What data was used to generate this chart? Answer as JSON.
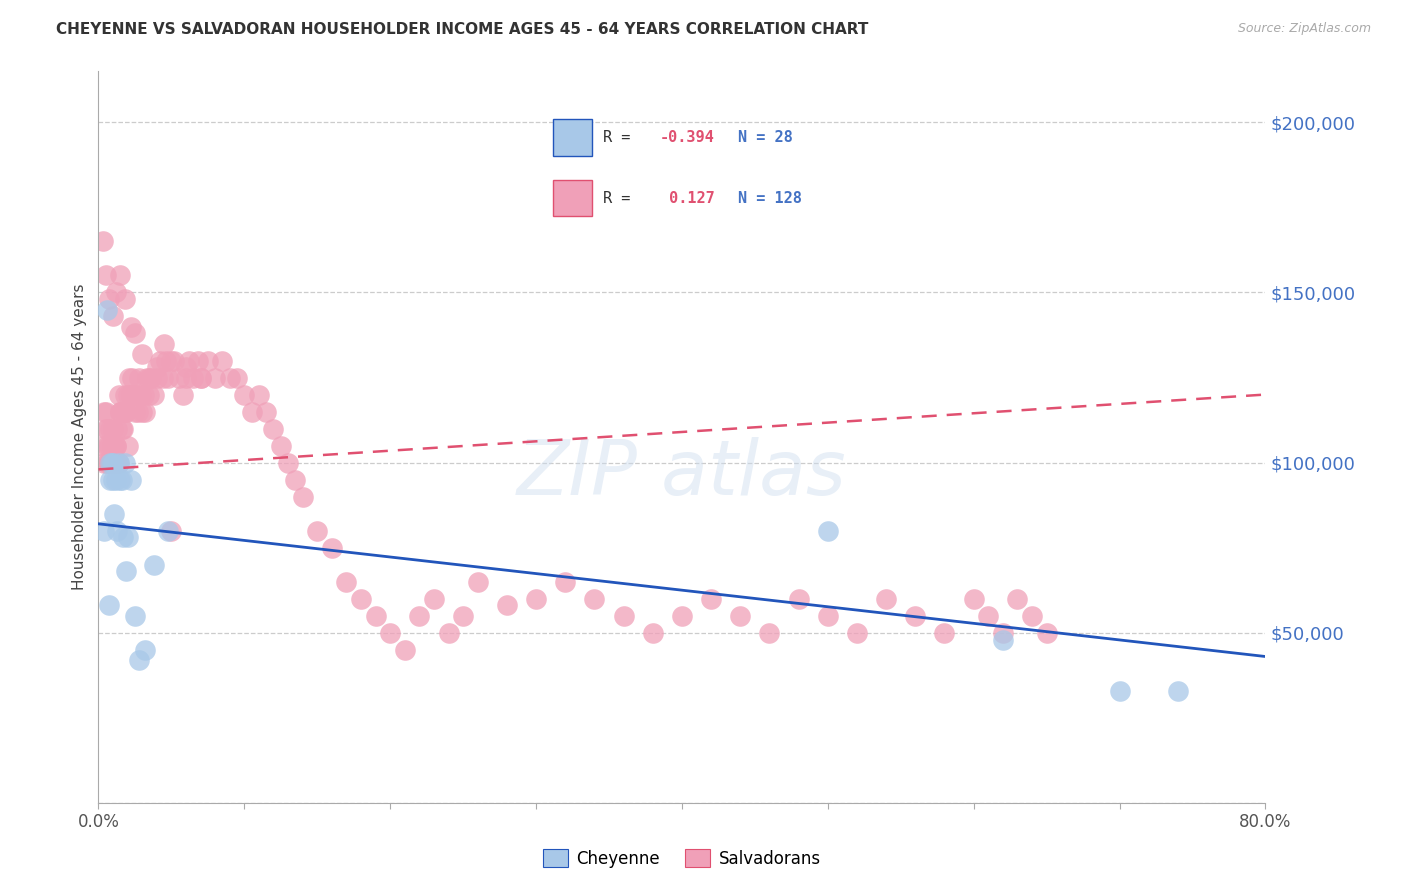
{
  "title": "CHEYENNE VS SALVADORAN HOUSEHOLDER INCOME AGES 45 - 64 YEARS CORRELATION CHART",
  "source": "Source: ZipAtlas.com",
  "ylabel": "Householder Income Ages 45 - 64 years",
  "legend_label_1": "Cheyenne",
  "legend_label_2": "Salvadorans",
  "r1": "-0.394",
  "n1": "28",
  "r2": "0.127",
  "n2": "128",
  "xlim": [
    0.0,
    0.8
  ],
  "ylim": [
    0,
    215000
  ],
  "color_cheyenne": "#a8c8e8",
  "color_salvadoran": "#f0a0b8",
  "color_line_cheyenne": "#2255bb",
  "color_line_salvadoran": "#e05070",
  "color_ytick_labels": "#4472c4",
  "cheyenne_line_y0": 82000,
  "cheyenne_line_y1": 43000,
  "salv_line_y0": 98000,
  "salv_line_y1": 120000,
  "cheyenne_points_x": [
    0.004,
    0.006,
    0.007,
    0.008,
    0.008,
    0.009,
    0.01,
    0.01,
    0.011,
    0.012,
    0.013,
    0.014,
    0.015,
    0.016,
    0.017,
    0.018,
    0.019,
    0.02,
    0.022,
    0.025,
    0.028,
    0.032,
    0.038,
    0.048,
    0.5,
    0.62,
    0.7,
    0.74
  ],
  "cheyenne_points_y": [
    80000,
    145000,
    58000,
    95000,
    100000,
    100000,
    95000,
    100000,
    85000,
    95000,
    80000,
    100000,
    95000,
    95000,
    78000,
    100000,
    68000,
    78000,
    95000,
    55000,
    42000,
    45000,
    70000,
    80000,
    80000,
    48000,
    33000,
    33000
  ],
  "salv_points_x": [
    0.003,
    0.004,
    0.004,
    0.005,
    0.005,
    0.006,
    0.006,
    0.006,
    0.007,
    0.007,
    0.008,
    0.008,
    0.009,
    0.009,
    0.01,
    0.01,
    0.011,
    0.011,
    0.012,
    0.012,
    0.013,
    0.013,
    0.014,
    0.014,
    0.015,
    0.015,
    0.016,
    0.016,
    0.017,
    0.018,
    0.018,
    0.019,
    0.02,
    0.02,
    0.021,
    0.022,
    0.023,
    0.024,
    0.025,
    0.026,
    0.027,
    0.028,
    0.029,
    0.03,
    0.031,
    0.032,
    0.033,
    0.035,
    0.036,
    0.038,
    0.04,
    0.042,
    0.044,
    0.046,
    0.048,
    0.05,
    0.052,
    0.055,
    0.058,
    0.06,
    0.062,
    0.065,
    0.068,
    0.07,
    0.075,
    0.08,
    0.085,
    0.09,
    0.095,
    0.1,
    0.105,
    0.11,
    0.115,
    0.12,
    0.125,
    0.13,
    0.135,
    0.14,
    0.15,
    0.16,
    0.17,
    0.18,
    0.19,
    0.2,
    0.21,
    0.22,
    0.23,
    0.24,
    0.25,
    0.26,
    0.28,
    0.3,
    0.32,
    0.34,
    0.36,
    0.38,
    0.4,
    0.42,
    0.44,
    0.46,
    0.48,
    0.5,
    0.52,
    0.54,
    0.56,
    0.58,
    0.6,
    0.61,
    0.62,
    0.63,
    0.64,
    0.65,
    0.003,
    0.005,
    0.007,
    0.01,
    0.012,
    0.015,
    0.018,
    0.022,
    0.025,
    0.03,
    0.035,
    0.04,
    0.045,
    0.05,
    0.06,
    0.07
  ],
  "salv_points_y": [
    105000,
    100000,
    115000,
    110000,
    115000,
    105000,
    100000,
    110000,
    100000,
    105000,
    100000,
    110000,
    100000,
    105000,
    100000,
    110000,
    105000,
    100000,
    105000,
    105000,
    100000,
    110000,
    100000,
    120000,
    115000,
    115000,
    110000,
    115000,
    110000,
    120000,
    115000,
    115000,
    120000,
    105000,
    125000,
    120000,
    125000,
    120000,
    115000,
    120000,
    115000,
    125000,
    120000,
    115000,
    120000,
    115000,
    125000,
    120000,
    125000,
    120000,
    125000,
    130000,
    125000,
    130000,
    125000,
    80000,
    130000,
    125000,
    120000,
    125000,
    130000,
    125000,
    130000,
    125000,
    130000,
    125000,
    130000,
    125000,
    125000,
    120000,
    115000,
    120000,
    115000,
    110000,
    105000,
    100000,
    95000,
    90000,
    80000,
    75000,
    65000,
    60000,
    55000,
    50000,
    45000,
    55000,
    60000,
    50000,
    55000,
    65000,
    58000,
    60000,
    65000,
    60000,
    55000,
    50000,
    55000,
    60000,
    55000,
    50000,
    60000,
    55000,
    50000,
    60000,
    55000,
    50000,
    60000,
    55000,
    50000,
    60000,
    55000,
    50000,
    165000,
    155000,
    148000,
    143000,
    150000,
    155000,
    148000,
    140000,
    138000,
    132000,
    125000,
    128000,
    135000,
    130000,
    128000,
    125000
  ]
}
